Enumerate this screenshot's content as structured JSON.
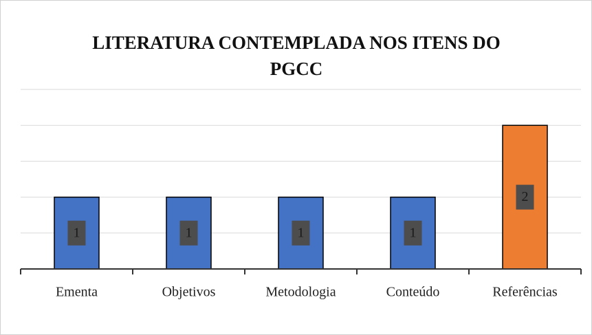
{
  "chart_data": {
    "type": "bar",
    "title": "LITERATURA CONTEMPLADA NOS ITENS DO PGCC",
    "categories": [
      "Ementa",
      "Objetivos",
      "Metodologia",
      "Conteúdo",
      "Referências"
    ],
    "values": [
      1,
      1,
      1,
      1,
      2
    ],
    "colors": [
      "#4472c4",
      "#4472c4",
      "#4472c4",
      "#4472c4",
      "#ed7d31"
    ],
    "ylim": [
      0,
      2.5
    ],
    "yticks": [
      0,
      0.5,
      1,
      1.5,
      2,
      2.5
    ],
    "grid": true
  }
}
